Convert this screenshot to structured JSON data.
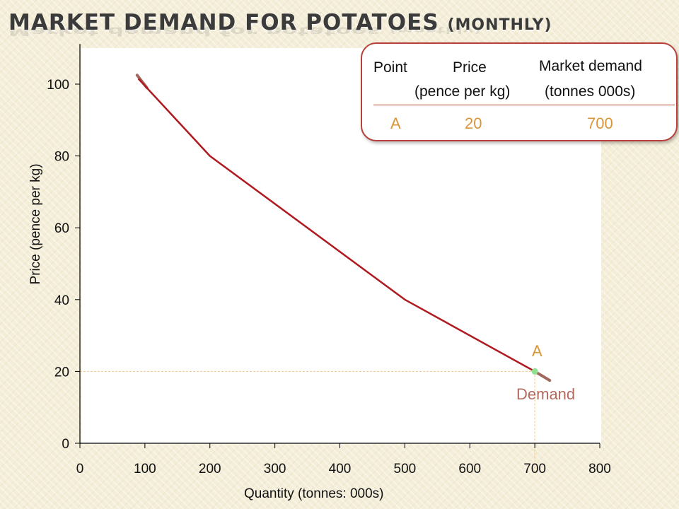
{
  "slide": {
    "title_main": "Market demand for potatoes ",
    "title_paren": "(monthly)"
  },
  "table": {
    "headers": {
      "point": "Point",
      "price": "Price",
      "price_unit": "(pence per kg)",
      "demand": "Market demand",
      "demand_unit": "(tonnes 000s)"
    },
    "rows": [
      {
        "point": "A",
        "price": "20",
        "demand": "700"
      }
    ]
  },
  "chart_data": {
    "type": "line",
    "xlabel": "Quantity (tonnes: 000s)",
    "ylabel": "Price (pence per kg)",
    "xlim": [
      0,
      800
    ],
    "ylim": [
      0,
      110
    ],
    "x_ticks": [
      0,
      100,
      200,
      300,
      400,
      500,
      600,
      700,
      800
    ],
    "y_ticks": [
      0,
      20,
      40,
      60,
      80,
      100
    ],
    "grid": false,
    "series": [
      {
        "name": "Demand",
        "color": "#b0191f",
        "points": [
          [
            90,
            101.5
          ],
          [
            200,
            80
          ],
          [
            500,
            40
          ],
          [
            700,
            20
          ]
        ]
      }
    ],
    "extensions": {
      "color": "#a0685e",
      "segments": [
        [
          [
            88,
            102.5
          ],
          [
            103,
            99
          ]
        ],
        [
          [
            700,
            20
          ],
          [
            723,
            17.5
          ]
        ]
      ]
    },
    "highlight": {
      "label": "A",
      "x": 700,
      "y": 20,
      "color": "#8fe08f",
      "guide_color": "#f3c98a"
    }
  }
}
